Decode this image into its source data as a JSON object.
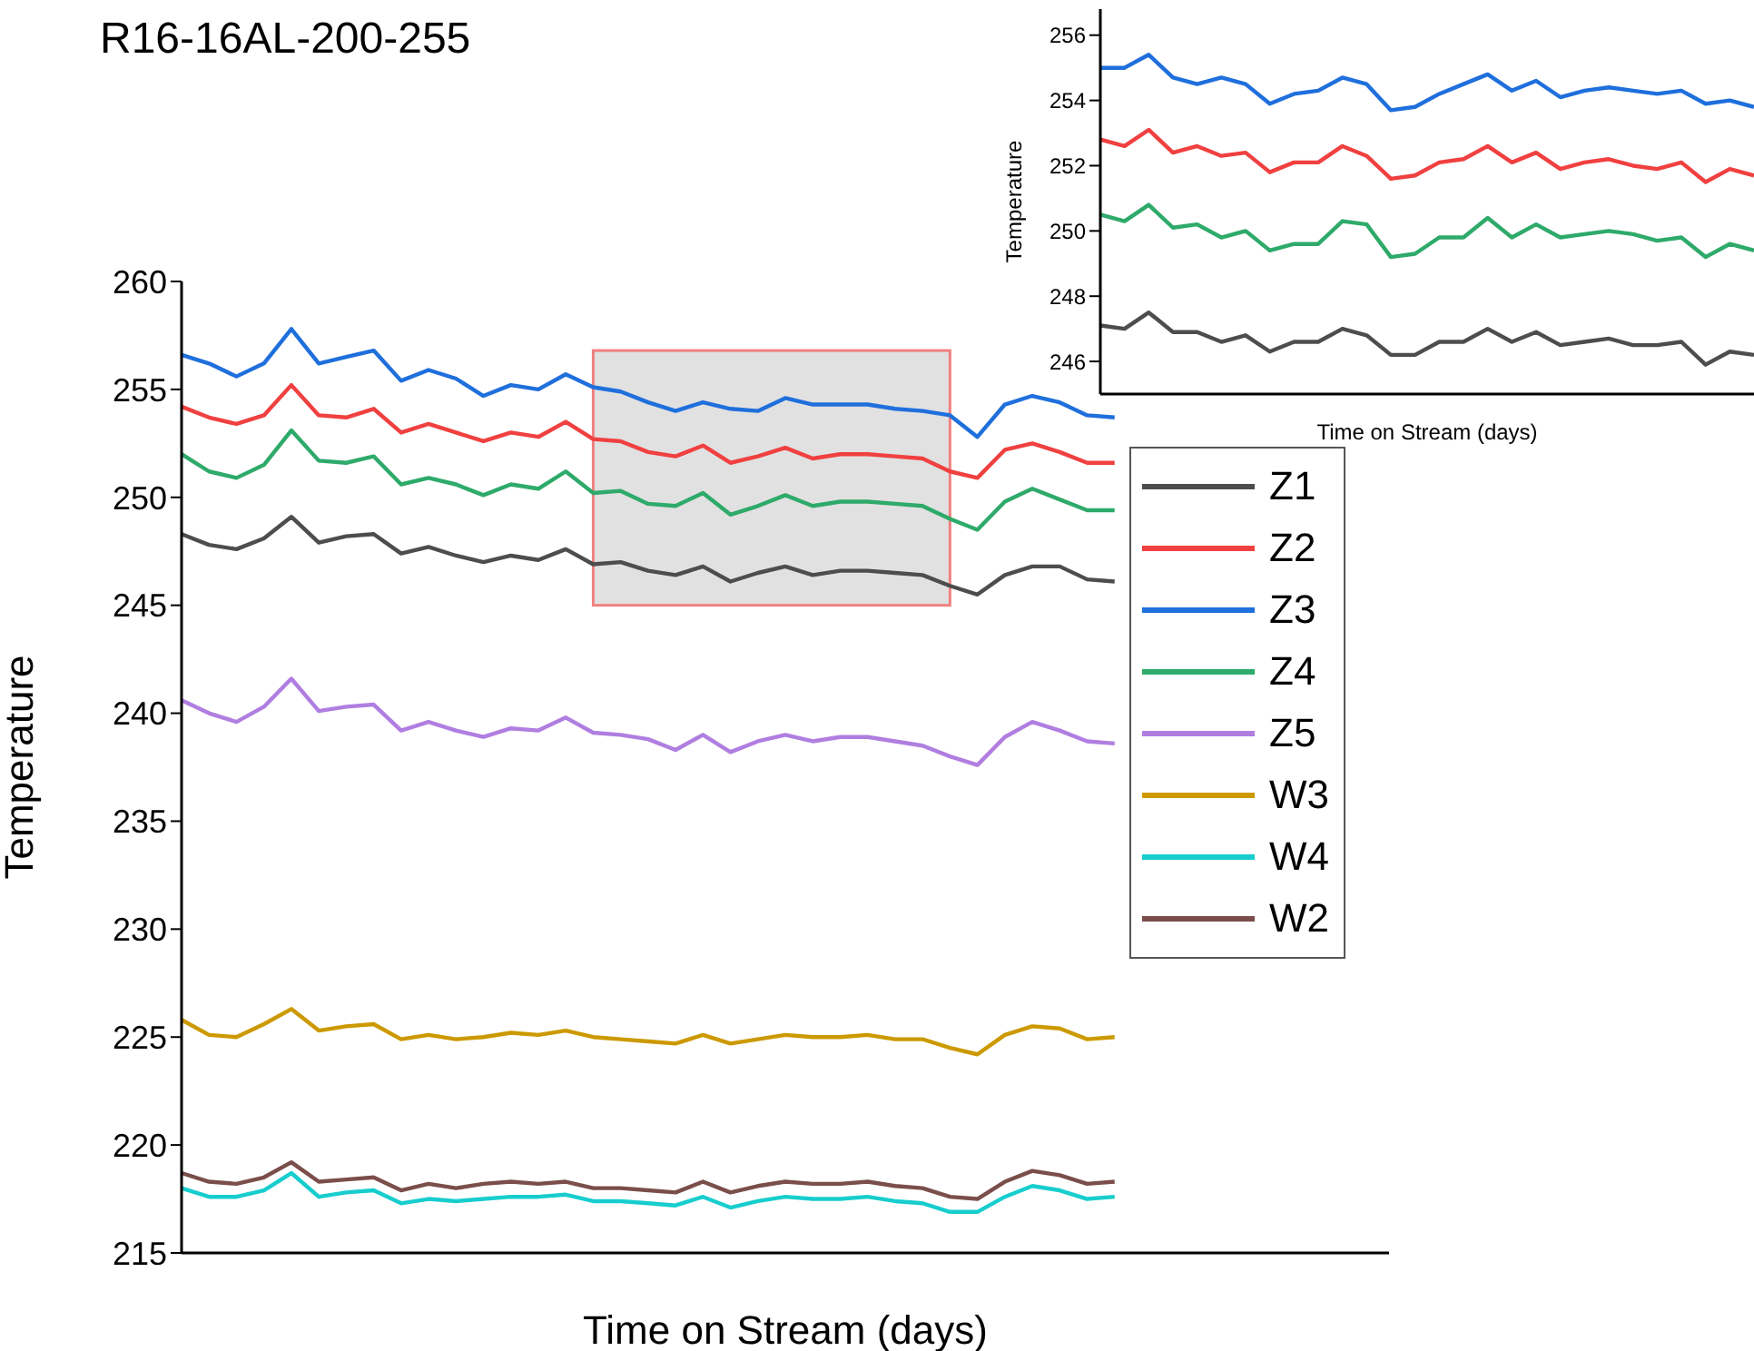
{
  "chart_data": [
    {
      "type": "line",
      "title": "R16-16AL-200-255",
      "xlabel": "Time on Stream (days)",
      "ylabel": "Temperature",
      "legend": "right",
      "tick_labels": "y",
      "ylim": [
        215,
        260
      ],
      "yticks": [
        215,
        220,
        225,
        230,
        235,
        240,
        245,
        250,
        255,
        260
      ],
      "categories": [
        null,
        null,
        null,
        null,
        null,
        null,
        null,
        null,
        null,
        null,
        null,
        null,
        null,
        null,
        null,
        null,
        null,
        null,
        null,
        null,
        null,
        null,
        null,
        null,
        null,
        null,
        null,
        null,
        null,
        null,
        null,
        null,
        null,
        null,
        null,
        null,
        null,
        null,
        null,
        null,
        null,
        null,
        null,
        null,
        null
      ],
      "series": [
        {
          "name": "Z1",
          "color": "#4d4d4d",
          "values": [
            248.3,
            247.8,
            247.6,
            248.1,
            249.1,
            247.9,
            248.2,
            248.3,
            247.4,
            247.7,
            247.3,
            247.0,
            247.3,
            247.1,
            247.6,
            246.9,
            247.0,
            246.6,
            246.4,
            246.8,
            246.1,
            246.5,
            246.8,
            246.4,
            246.6,
            246.6,
            246.5,
            246.4,
            245.9,
            245.5,
            246.4,
            246.8,
            246.8,
            246.2,
            246.1,
            null,
            null,
            null,
            null,
            null,
            null,
            null,
            null,
            null,
            null
          ]
        },
        {
          "name": "Z2",
          "color": "#f04040",
          "values": [
            254.2,
            253.7,
            253.4,
            253.8,
            255.2,
            253.8,
            253.7,
            254.1,
            253.0,
            253.4,
            253.0,
            252.6,
            253.0,
            252.8,
            253.5,
            252.7,
            252.6,
            252.1,
            251.9,
            252.4,
            251.6,
            251.9,
            252.3,
            251.8,
            252.0,
            252.0,
            251.9,
            251.8,
            251.2,
            250.9,
            252.2,
            252.5,
            252.1,
            251.6,
            251.6,
            null,
            null,
            null,
            null,
            null,
            null,
            null,
            null,
            null,
            null
          ]
        },
        {
          "name": "Z3",
          "color": "#1f6fdc",
          "values": [
            256.6,
            256.2,
            255.6,
            256.2,
            257.8,
            256.2,
            256.5,
            256.8,
            255.4,
            255.9,
            255.5,
            254.7,
            255.2,
            255.0,
            255.7,
            255.1,
            254.9,
            254.4,
            254.0,
            254.4,
            254.1,
            254.0,
            254.6,
            254.3,
            254.3,
            254.3,
            254.1,
            254.0,
            253.8,
            252.8,
            254.3,
            254.7,
            254.4,
            253.8,
            253.7,
            null,
            null,
            null,
            null,
            null,
            null,
            null,
            null,
            null,
            null
          ]
        },
        {
          "name": "Z4",
          "color": "#2eaa6a",
          "values": [
            252.0,
            251.2,
            250.9,
            251.5,
            253.1,
            251.7,
            251.6,
            251.9,
            250.6,
            250.9,
            250.6,
            250.1,
            250.6,
            250.4,
            251.2,
            250.2,
            250.3,
            249.7,
            249.6,
            250.2,
            249.2,
            249.6,
            250.1,
            249.6,
            249.8,
            249.8,
            249.7,
            249.6,
            249.0,
            248.5,
            249.8,
            250.4,
            249.9,
            249.4,
            249.4,
            null,
            null,
            null,
            null,
            null,
            null,
            null,
            null,
            null,
            null
          ]
        },
        {
          "name": "Z5",
          "color": "#b07ee0",
          "values": [
            240.6,
            240.0,
            239.6,
            240.3,
            241.6,
            240.1,
            240.3,
            240.4,
            239.2,
            239.6,
            239.2,
            238.9,
            239.3,
            239.2,
            239.8,
            239.1,
            239.0,
            238.8,
            238.3,
            239.0,
            238.2,
            238.7,
            239.0,
            238.7,
            238.9,
            238.9,
            238.7,
            238.5,
            238.0,
            237.6,
            238.9,
            239.6,
            239.2,
            238.7,
            238.6,
            null,
            null,
            null,
            null,
            null,
            null,
            null,
            null,
            null,
            null
          ]
        },
        {
          "name": "W3",
          "color": "#cc9900",
          "values": [
            225.8,
            225.1,
            225.0,
            225.6,
            226.3,
            225.3,
            225.5,
            225.6,
            224.9,
            225.1,
            224.9,
            225.0,
            225.2,
            225.1,
            225.3,
            225.0,
            224.9,
            224.8,
            224.7,
            225.1,
            224.7,
            224.9,
            225.1,
            225.0,
            225.0,
            225.1,
            224.9,
            224.9,
            224.5,
            224.2,
            225.1,
            225.5,
            225.4,
            224.9,
            225.0,
            null,
            null,
            null,
            null,
            null,
            null,
            null,
            null,
            null,
            null
          ]
        },
        {
          "name": "W4",
          "color": "#18cdcd",
          "values": [
            218.0,
            217.6,
            217.6,
            217.9,
            218.7,
            217.6,
            217.8,
            217.9,
            217.3,
            217.5,
            217.4,
            217.5,
            217.6,
            217.6,
            217.7,
            217.4,
            217.4,
            217.3,
            217.2,
            217.6,
            217.1,
            217.4,
            217.6,
            217.5,
            217.5,
            217.6,
            217.4,
            217.3,
            216.9,
            216.9,
            217.6,
            218.1,
            217.9,
            217.5,
            217.6,
            null,
            null,
            null,
            null,
            null,
            null,
            null,
            null,
            null,
            null
          ]
        },
        {
          "name": "W2",
          "color": "#7a4e4a",
          "values": [
            218.7,
            218.3,
            218.2,
            218.5,
            219.2,
            218.3,
            218.4,
            218.5,
            217.9,
            218.2,
            218.0,
            218.2,
            218.3,
            218.2,
            218.3,
            218.0,
            218.0,
            217.9,
            217.8,
            218.3,
            217.8,
            218.1,
            218.3,
            218.2,
            218.2,
            218.3,
            218.1,
            218.0,
            217.6,
            217.5,
            218.3,
            218.8,
            218.6,
            218.2,
            218.3,
            null,
            null,
            null,
            null,
            null,
            null,
            null,
            null,
            null,
            null
          ]
        }
      ]
    },
    {
      "type": "line",
      "xlabel": "Time on Stream (days)",
      "ylabel": "Temperature",
      "tick_labels": "y",
      "ylim": [
        245,
        256.8
      ],
      "yticks": [
        246,
        248,
        250,
        252,
        254,
        256
      ],
      "categories": [
        null,
        null,
        null,
        null,
        null,
        null,
        null,
        null,
        null,
        null,
        null,
        null,
        null,
        null,
        null,
        null,
        null,
        null,
        null,
        null,
        null,
        null,
        null,
        null,
        null,
        null,
        null,
        null
      ],
      "series": [
        {
          "color": "#4d4d4d",
          "values": [
            247.1,
            247.0,
            247.5,
            246.9,
            246.9,
            246.6,
            246.8,
            246.3,
            246.6,
            246.6,
            247.0,
            246.8,
            246.2,
            246.2,
            246.6,
            246.6,
            247.0,
            246.6,
            246.9,
            246.5,
            246.6,
            246.7,
            246.5,
            246.5,
            246.6,
            245.9,
            246.3,
            246.2
          ]
        },
        {
          "color": "#f04040",
          "values": [
            252.8,
            252.6,
            253.1,
            252.4,
            252.6,
            252.3,
            252.4,
            251.8,
            252.1,
            252.1,
            252.6,
            252.3,
            251.6,
            251.7,
            252.1,
            252.2,
            252.6,
            252.1,
            252.4,
            251.9,
            252.1,
            252.2,
            252.0,
            251.9,
            252.1,
            251.5,
            251.9,
            251.7
          ]
        },
        {
          "color": "#1f6fdc",
          "values": [
            255.0,
            255.0,
            255.4,
            254.7,
            254.5,
            254.7,
            254.5,
            253.9,
            254.2,
            254.3,
            254.7,
            254.5,
            253.7,
            253.8,
            254.2,
            254.5,
            254.8,
            254.3,
            254.6,
            254.1,
            254.3,
            254.4,
            254.3,
            254.2,
            254.3,
            253.9,
            254.0,
            253.8
          ]
        },
        {
          "color": "#2eaa6a",
          "values": [
            250.5,
            250.3,
            250.8,
            250.1,
            250.2,
            249.8,
            250.0,
            249.4,
            249.6,
            249.6,
            250.3,
            250.2,
            249.2,
            249.3,
            249.8,
            249.8,
            250.4,
            249.8,
            250.2,
            249.8,
            249.9,
            250.0,
            249.9,
            249.7,
            249.8,
            249.2,
            249.6,
            249.4
          ]
        }
      ]
    }
  ]
}
